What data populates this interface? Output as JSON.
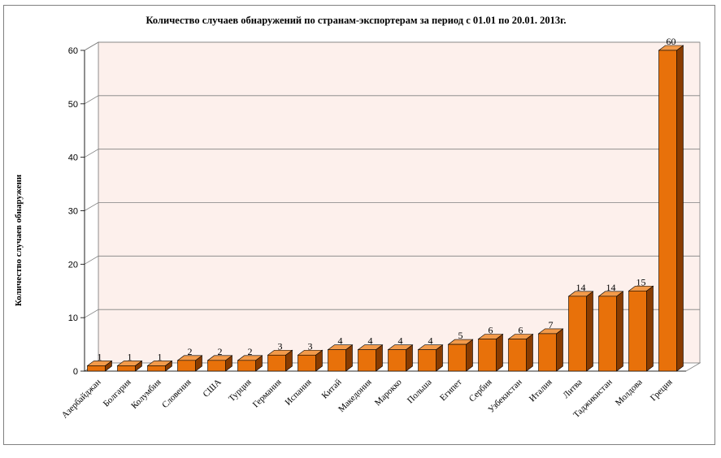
{
  "chart_data": {
    "type": "bar",
    "title": "Количество случаев обнаружений по странам-экспортерам за период с 01.01 по 20.01. 2013г.",
    "ylabel": "Количество случаев обнаружени",
    "xlabel": "",
    "ylim": [
      0,
      60
    ],
    "yticks": [
      0,
      10,
      20,
      30,
      40,
      50,
      60
    ],
    "categories": [
      "Азербайджан",
      "Болгария",
      "Колумбия",
      "Словения",
      "США",
      "Турция",
      "Германия",
      "Испания",
      "Китай",
      "Македония",
      "Марокко",
      "Польша",
      "Египет",
      "Сербия",
      "Узбекистан",
      "Италия",
      "Литва",
      "Таджикистан",
      "Молдова",
      "Греция"
    ],
    "values": [
      1,
      1,
      1,
      2,
      2,
      2,
      3,
      3,
      4,
      4,
      4,
      4,
      5,
      6,
      6,
      7,
      14,
      14,
      15,
      60
    ],
    "data_labels": [
      "1",
      "1",
      "1",
      "2",
      "2",
      "2",
      "3",
      "3",
      "4",
      "4",
      "4",
      "4",
      "5",
      "6",
      "6",
      "7",
      "14",
      "14",
      "15",
      "60"
    ],
    "grid": true,
    "legend": "none",
    "colors": {
      "bar_front": "#e8710a",
      "bar_top": "#f29a4a",
      "bar_side": "#8a3c00",
      "wall": "#fdf0ec",
      "gridline": "#808080"
    }
  }
}
